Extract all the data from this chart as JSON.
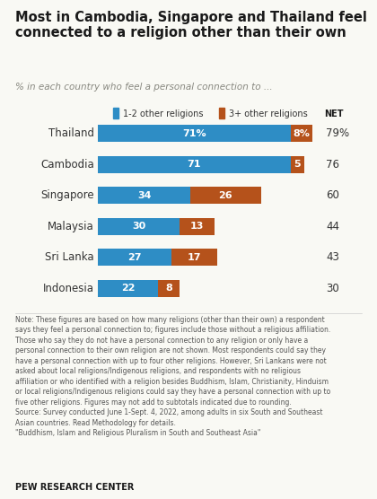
{
  "title": "Most in Cambodia, Singapore and Thailand feel\nconnected to a religion other than their own",
  "subtitle": "% in each country who feel a personal connection to ...",
  "countries": [
    "Thailand",
    "Cambodia",
    "Singapore",
    "Malaysia",
    "Sri Lanka",
    "Indonesia"
  ],
  "values_blue": [
    71,
    71,
    34,
    30,
    27,
    22
  ],
  "values_orange": [
    8,
    5,
    26,
    13,
    17,
    8
  ],
  "labels_blue": [
    "71%",
    "71",
    "34",
    "30",
    "27",
    "22"
  ],
  "labels_orange": [
    "8%",
    "5",
    "26",
    "13",
    "17",
    "8"
  ],
  "net_values": [
    "79%",
    "76",
    "60",
    "44",
    "43",
    "30"
  ],
  "color_blue": "#2E8DC5",
  "color_orange": "#B5521B",
  "legend_blue": "1-2 other religions",
  "legend_orange": "3+ other religions",
  "legend_net": "NET",
  "bg_color": "#f9f9f4",
  "note_text": "Note: These figures are based on how many religions (other than their own) a respondent\nsays they feel a personal connection to; figures include those without a religious affiliation.\nThose who say they do not have a personal connection to any religion or only have a\npersonal connection to their own religion are not shown. Most respondents could say they\nhave a personal connection with up to four other religions. However, Sri Lankans were not\nasked about local religions/Indigenous religions, and respondents with no religious\naffiliation or who identified with a religion besides Buddhism, Islam, Christianity, Hinduism\nor local religions/Indigenous religions could say they have a personal connection with up to\nfive other religions. Figures may not add to subtotals indicated due to rounding.\nSource: Survey conducted June 1-Sept. 4, 2022, among adults in six South and Southeast\nAsian countries. Read Methodology for details.\n\"Buddhism, Islam and Religious Pluralism in South and Southeast Asia\"",
  "source_label": "PEW RESEARCH CENTER",
  "xlim": [
    0,
    82
  ]
}
